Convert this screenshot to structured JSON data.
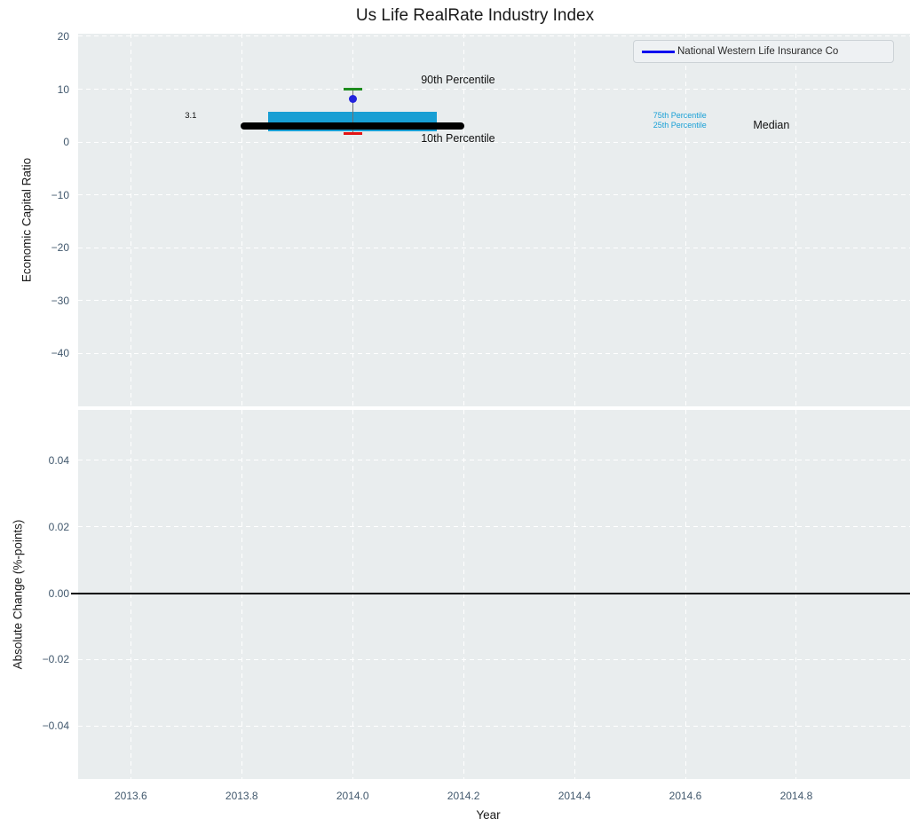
{
  "figure": {
    "title": "Us Life RealRate Industry Index",
    "xlabel": "Year",
    "legend": {
      "label": "National Western Life Insurance Co",
      "line_color": "#0b0bee"
    }
  },
  "colors": {
    "plot_bg": "#e9edee",
    "grid": "#ffffff",
    "box_fill": "#189fd4",
    "median_line": "#000000",
    "p90_cap": "#1e8c1e",
    "p10_cap": "#e31414",
    "whisker": "#707070",
    "company_marker": "#2323dd",
    "zero_line": "#000000",
    "tick_text": "#41586d",
    "percentile_label_cyan": "#19a0d6"
  },
  "chart_data": [
    {
      "type": "boxplot",
      "subplot": "top",
      "title": "Us Life RealRate Industry Index",
      "ylabel": "Economic Capital Ratio",
      "xlabel": "Year",
      "grid": true,
      "xlim": [
        2013.505,
        2015.005
      ],
      "ylim": [
        -50,
        20.5
      ],
      "xticks": {
        "values": [
          2013.6,
          2013.8,
          2014.0,
          2014.2,
          2014.4,
          2014.6,
          2014.8
        ],
        "labels": [
          "2013.6",
          "2013.8",
          "2014.0",
          "2014.2",
          "2014.4",
          "2014.6",
          "2014.8"
        ]
      },
      "yticks": {
        "values": [
          20,
          10,
          0,
          -10,
          -20,
          -30,
          -40
        ],
        "labels": [
          "20",
          "10",
          "0",
          "−10",
          "−20",
          "−30",
          "−40"
        ]
      },
      "box": {
        "x": 2014.0,
        "p90": 10.0,
        "q3": 5.7,
        "median": 3.1,
        "q1": 2.1,
        "p10": 1.7,
        "box_halfwidth": 0.152,
        "median_halfwidth": 0.202,
        "cap_halfwidth": 0.017
      },
      "company": {
        "name": "National Western Life Insurance Co",
        "x": 2014.0,
        "y": 8.2,
        "color": "#2323dd",
        "marker": "circle"
      },
      "annotations": [
        {
          "text": "90th Percentile",
          "x": 2014.19,
          "y": 11.6,
          "color": "#111111",
          "size": 12.5
        },
        {
          "text": "10th Percentile",
          "x": 2014.19,
          "y": 0.45,
          "color": "#111111",
          "size": 12.5
        },
        {
          "text": "75th Percentile",
          "x": 2014.59,
          "y": 4.97,
          "color": "#19a0d6",
          "size": 9
        },
        {
          "text": "25th Percentile",
          "x": 2014.59,
          "y": 3.12,
          "color": "#19a0d6",
          "size": 9
        },
        {
          "text": "Median",
          "x": 2014.755,
          "y": 3.1,
          "color": "#111111",
          "size": 12.5
        },
        {
          "text": "3.1",
          "x": 2013.708,
          "y": 4.95,
          "color": "#111111",
          "size": 9.5
        }
      ],
      "legend": {
        "position": "upper right",
        "entries": [
          "National Western Life Insurance Co"
        ]
      }
    },
    {
      "type": "line",
      "subplot": "bottom",
      "ylabel": "Absolute Change (%-points)",
      "grid": true,
      "xlim": [
        2013.505,
        2015.005
      ],
      "ylim": [
        -0.056,
        0.0552
      ],
      "yticks": {
        "values": [
          0.04,
          0.02,
          0.0,
          -0.02,
          -0.04
        ],
        "labels": [
          "0.04",
          "0.02",
          "0.00",
          "−0.02",
          "−0.04"
        ]
      },
      "zero_line": 0.0,
      "series": []
    }
  ]
}
